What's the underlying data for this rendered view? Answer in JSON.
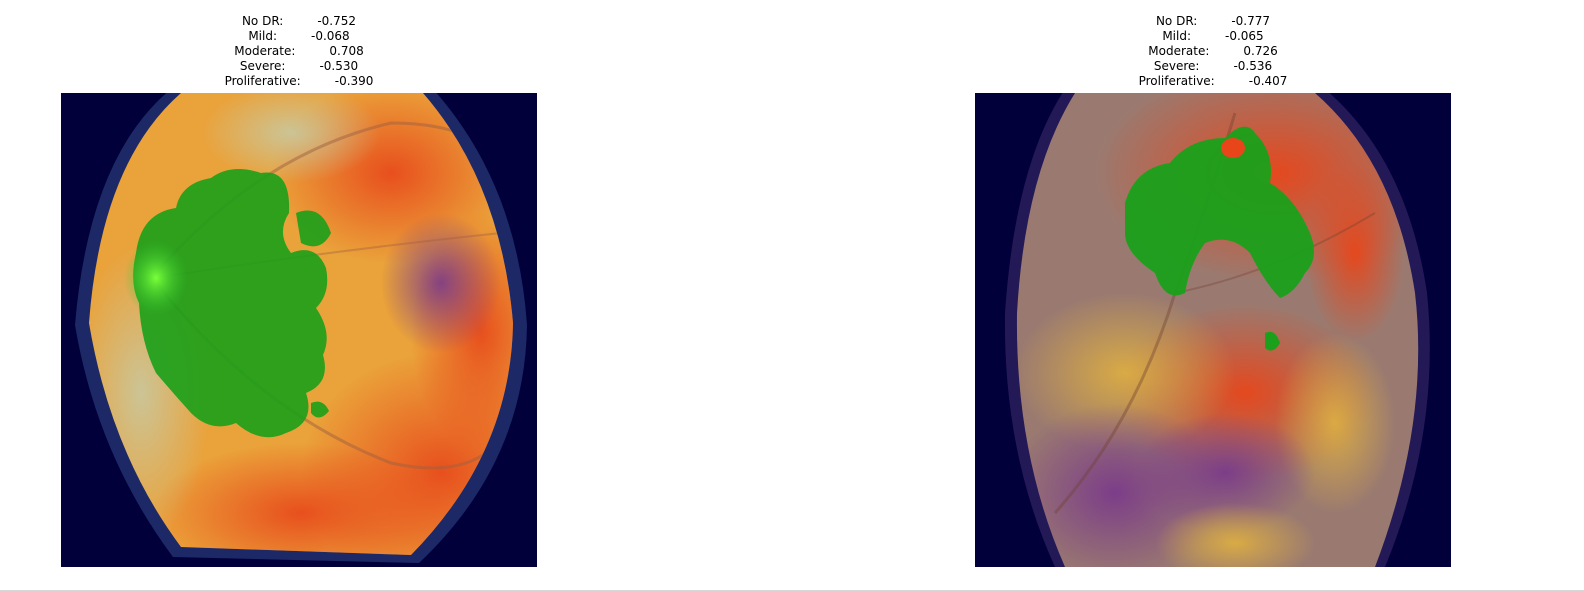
{
  "panels": [
    {
      "scores": [
        {
          "label": "No DR:",
          "value": "-0.752"
        },
        {
          "label": "Mild:",
          "value": "-0.068"
        },
        {
          "label": "Moderate:",
          "value": "0.708"
        },
        {
          "label": "Severe:",
          "value": "-0.530"
        },
        {
          "label": "Proliferative:",
          "value": "-0.390"
        }
      ]
    },
    {
      "scores": [
        {
          "label": "No DR:",
          "value": "-0.777"
        },
        {
          "label": "Mild:",
          "value": "-0.065"
        },
        {
          "label": "Moderate:",
          "value": "0.726"
        },
        {
          "label": "Severe:",
          "value": "-0.536"
        },
        {
          "label": "Proliferative:",
          "value": "-0.407"
        }
      ]
    }
  ],
  "colors": {
    "background": "#02003a",
    "highlight": "#1aa01a",
    "heat_hot": "#e8461a",
    "heat_warm": "#f0b030",
    "heat_cool": "#7a3a8a"
  }
}
